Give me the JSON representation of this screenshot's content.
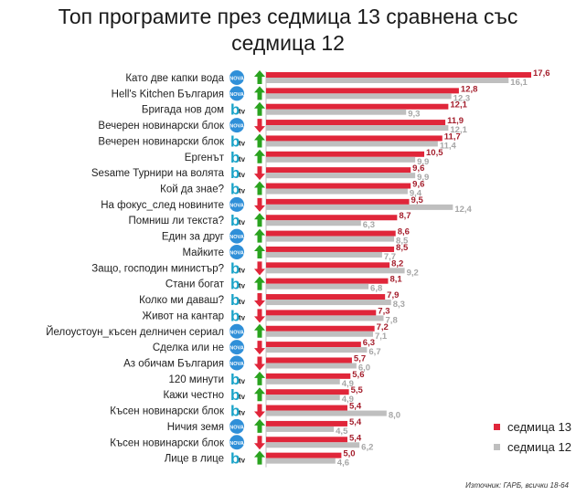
{
  "title_line1": "Топ програмите през седмица 13 сравнена със",
  "title_line2": "седмица 12",
  "source": "Източник: ГАРБ, всички 18-64",
  "legend": {
    "current": "седмица 13",
    "previous": "седмица 12"
  },
  "colors": {
    "current": "#e0263a",
    "previous": "#bfbfbf",
    "current_label": "#a41e2c",
    "previous_label": "#a6a6a6",
    "arrow_up": "#2aa31f",
    "arrow_down": "#e0263a",
    "nova": "#2f8fd8",
    "btv": "#1aa3c8"
  },
  "chart_data": {
    "type": "bar",
    "orientation": "horizontal",
    "categories": [
      "Като две капки вода",
      "Hell's Kitchen България",
      "Бригада нов дом",
      "Вечерен новинарски блок",
      "Вечерен новинарски блок",
      "Ергенът",
      "Sesame Турнири на волята",
      "Кой да знае?",
      "На фокус_след новините",
      "Помниш ли текста?",
      "Един за друг",
      "Майките",
      "Защо, господин министър?",
      "Стани богат",
      "Колко ми даваш?",
      "Живот на кантар",
      "Йелоустоун_късен делничен сериал",
      "Сделка или не",
      "Аз обичам България",
      "120 минути",
      "Кажи честно",
      "Късен новинарски блок",
      "Ничия земя",
      "Късен новинарски блок",
      "Лице в лице"
    ],
    "channels": [
      "nova",
      "nova",
      "btv",
      "nova",
      "btv",
      "btv",
      "btv",
      "btv",
      "nova",
      "btv",
      "nova",
      "nova",
      "btv",
      "btv",
      "btv",
      "btv",
      "nova",
      "nova",
      "nova",
      "btv",
      "btv",
      "btv",
      "nova",
      "nova",
      "btv"
    ],
    "trend": [
      "up",
      "up",
      "up",
      "down",
      "up",
      "up",
      "down",
      "up",
      "down",
      "up",
      "up",
      "up",
      "down",
      "up",
      "down",
      "down",
      "up",
      "down",
      "down",
      "up",
      "up",
      "down",
      "up",
      "down",
      "up"
    ],
    "series": [
      {
        "name": "седмица 13",
        "values": [
          17.6,
          12.8,
          12.1,
          11.9,
          11.7,
          10.5,
          9.6,
          9.6,
          9.5,
          8.7,
          8.6,
          8.5,
          8.2,
          8.1,
          7.9,
          7.3,
          7.2,
          6.3,
          5.7,
          5.6,
          5.5,
          5.4,
          5.4,
          5.4,
          5.0
        ],
        "labels": [
          "17,6",
          "12,8",
          "12,1",
          "11,9",
          "11,7",
          "10,5",
          "9,6",
          "9,6",
          "9,5",
          "8,7",
          "8,6",
          "8,5",
          "8,2",
          "8,1",
          "7,9",
          "7,3",
          "7,2",
          "6,3",
          "5,7",
          "5,6",
          "5,5",
          "5,4",
          "5,4",
          "5,4",
          "5,0"
        ]
      },
      {
        "name": "седмица 12",
        "values": [
          16.1,
          12.3,
          9.3,
          12.1,
          11.4,
          9.9,
          9.9,
          9.4,
          12.4,
          6.3,
          8.5,
          7.7,
          9.2,
          6.8,
          8.3,
          7.8,
          7.1,
          6.7,
          6.0,
          4.9,
          4.9,
          8.0,
          4.5,
          6.2,
          4.6
        ],
        "labels": [
          "16,1",
          "12,3",
          "9,3",
          "12,1",
          "11,4",
          "9,9",
          "9,9",
          "9,4",
          "12,4",
          "6,3",
          "8,5",
          "7,7",
          "9,2",
          "6,8",
          "8,3",
          "7,8",
          "7,1",
          "6,7",
          "6,0",
          "4,9",
          "4,9",
          "8,0",
          "4,5",
          "6,2",
          "4,6"
        ]
      }
    ],
    "xlim": [
      0,
      17.6
    ],
    "grid": false,
    "legend_position": "bottom-right"
  }
}
